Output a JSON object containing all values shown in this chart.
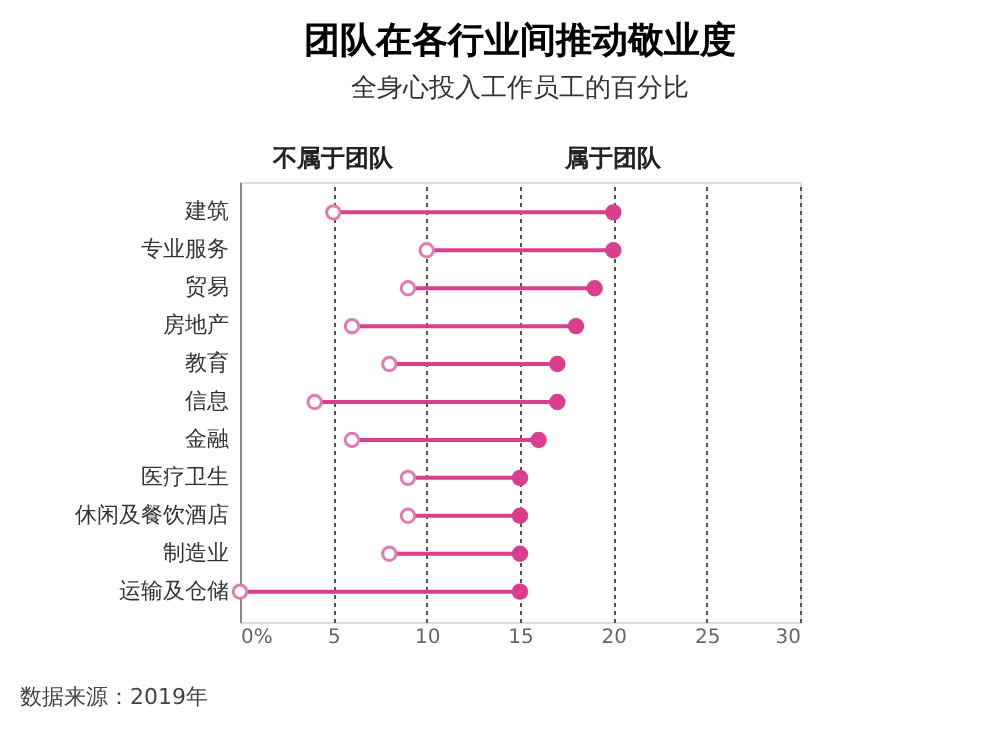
{
  "chart_data": {
    "type": "scatter",
    "orientation": "horizontal",
    "title": "团队在各行业间推动敬业度",
    "subtitle": "全身心投入工作员工的百分比",
    "categories": [
      "建筑",
      "专业服务",
      "贸易",
      "房地产",
      "教育",
      "信息",
      "金融",
      "医疗卫生",
      "休闲及餐饮酒店",
      "制造业",
      "运输及仓储"
    ],
    "series": [
      {
        "name": "不属于团队",
        "color": "#e27bb3",
        "values": [
          5,
          10,
          9,
          6,
          8,
          4,
          6,
          9,
          9,
          8,
          0
        ]
      },
      {
        "name": "属于团队",
        "color": "#d93f8c",
        "values": [
          20,
          20,
          19,
          18,
          17,
          17,
          16,
          15,
          15,
          15,
          15
        ]
      }
    ],
    "xlim": [
      0,
      30
    ],
    "xticks": [
      {
        "value": 0,
        "label": "0%"
      },
      5,
      10,
      15,
      20,
      25,
      30
    ],
    "grid": "x",
    "legend": "top",
    "marker": "circle",
    "annotations": [
      "数据来源：2019年"
    ]
  }
}
